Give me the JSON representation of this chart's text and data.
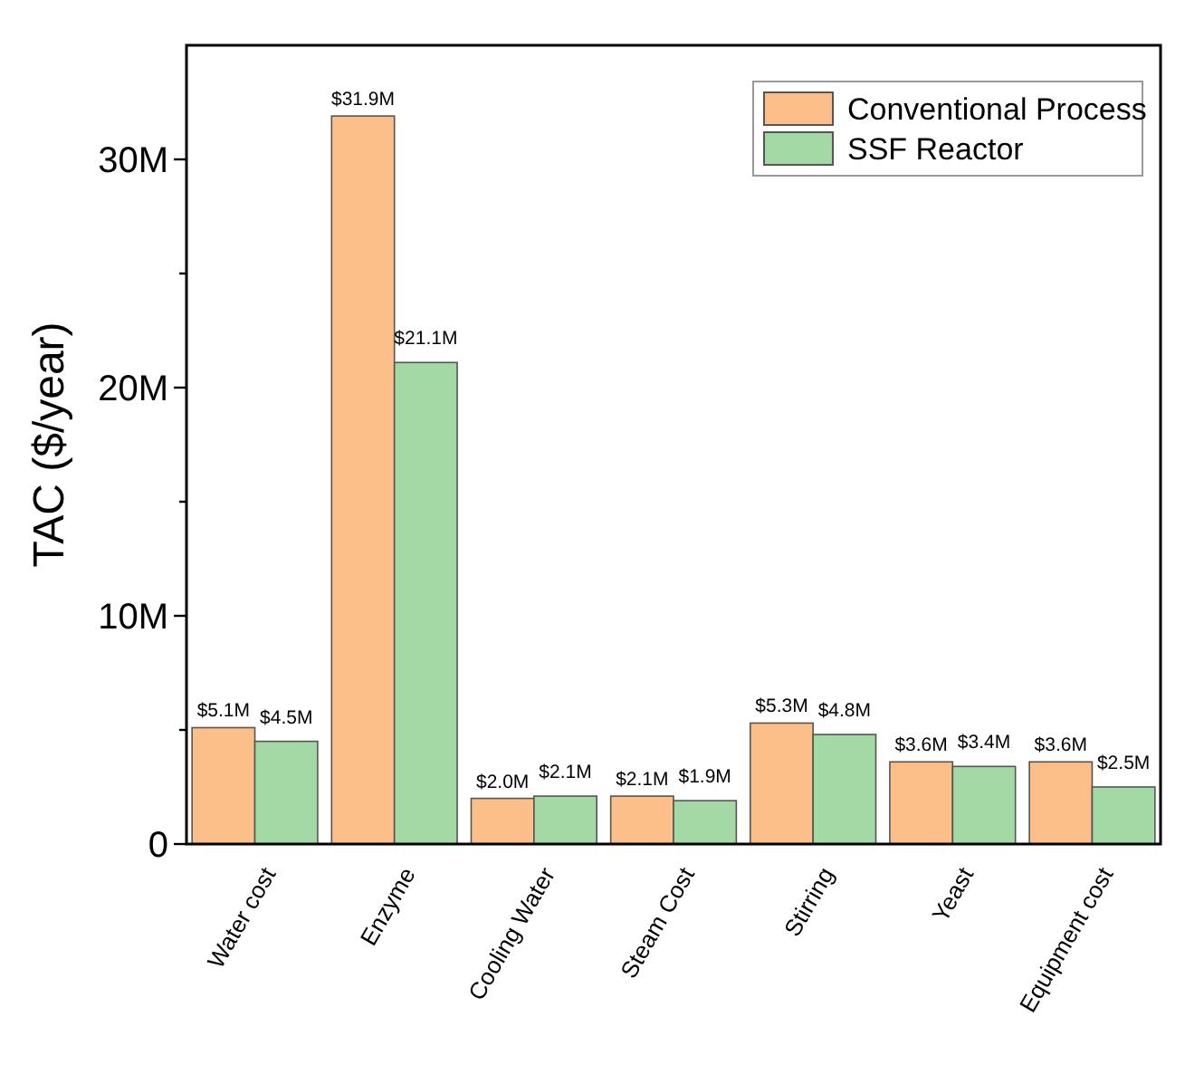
{
  "chart_data": {
    "type": "bar",
    "ylabel": "TAC ($/year)",
    "categories": [
      "Water cost",
      "Enzyme",
      "Cooling Water",
      "Steam Cost",
      "Stirring",
      "Yeast",
      "Equipment cost"
    ],
    "series": [
      {
        "name": "Conventional Process",
        "color": "#fdbf8a",
        "values": [
          5.1,
          31.9,
          2.0,
          2.1,
          5.3,
          3.6,
          3.6
        ],
        "value_labels": [
          "$5.1M",
          "$31.9M",
          "$2.0M",
          "$2.1M",
          "$5.3M",
          "$3.6M",
          "$3.6M"
        ]
      },
      {
        "name": "SSF Reactor",
        "color": "#a3d9a5",
        "values": [
          4.5,
          21.1,
          2.1,
          1.9,
          4.8,
          3.4,
          2.5
        ],
        "value_labels": [
          "$4.5M",
          "$21.1M",
          "$2.1M",
          "$1.9M",
          "$4.8M",
          "$3.4M",
          "$2.5M"
        ]
      }
    ],
    "ylim": [
      0,
      35
    ],
    "yticks": [
      0,
      {
        "value": 5,
        "label": null
      },
      {
        "value": 10,
        "label": "10M"
      },
      {
        "value": 15,
        "label": null
      },
      {
        "value": 20,
        "label": "20M"
      },
      {
        "value": 25,
        "label": null
      },
      {
        "value": 30,
        "label": "30M"
      }
    ],
    "grid": false,
    "legend": "top right"
  }
}
